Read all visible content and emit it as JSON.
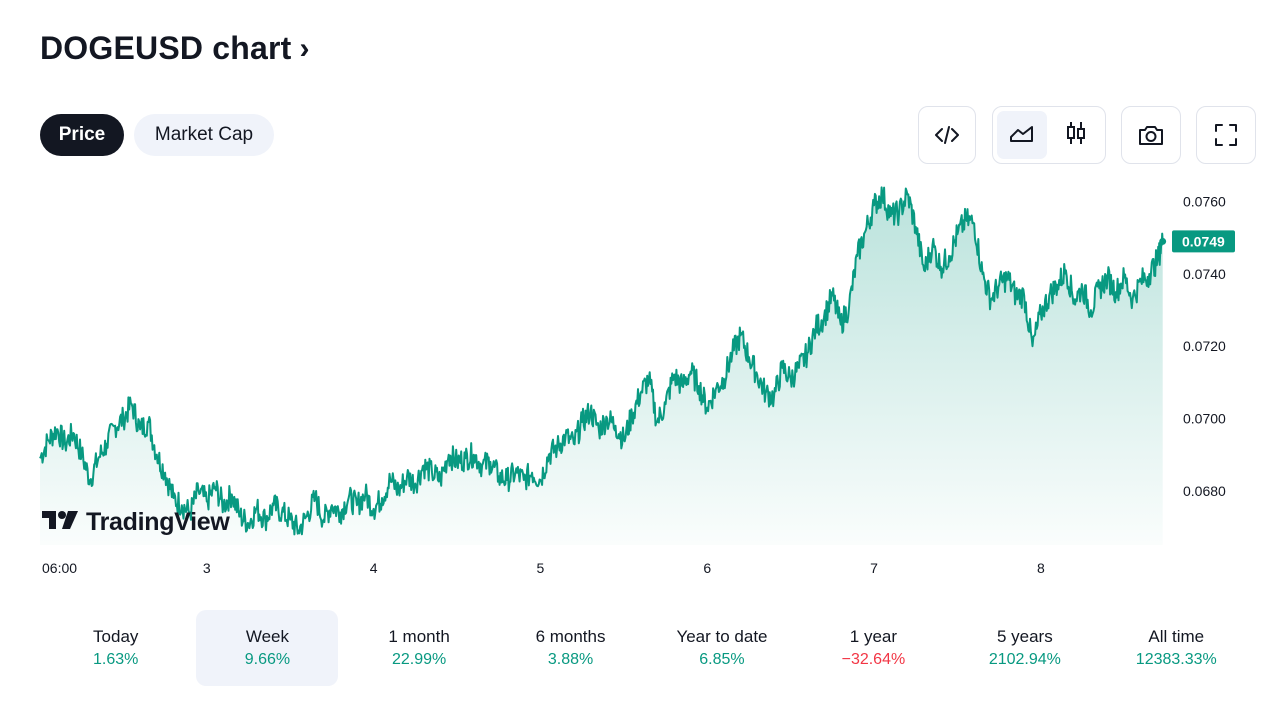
{
  "header": {
    "title": "DOGEUSD chart",
    "chevron": "›"
  },
  "tabs": [
    {
      "label": "Price",
      "active": true
    },
    {
      "label": "Market Cap",
      "active": false
    }
  ],
  "toolbar": {
    "embed_icon": "code-icon",
    "area_icon": "area-chart-icon",
    "candles_icon": "candlestick-icon",
    "snapshot_icon": "camera-icon",
    "fullscreen_icon": "fullscreen-icon"
  },
  "watermark": "TradingView",
  "colors": {
    "line": "#089981",
    "positive": "#089981",
    "negative": "#f23645",
    "dark": "#131722",
    "selected_bg": "#f0f3fa"
  },
  "chart_data": {
    "type": "area",
    "symbol": "DOGEUSD",
    "last_price": "0.0749",
    "y_ticks": [
      "0.0760",
      "0.0740",
      "0.0720",
      "0.0700",
      "0.0680"
    ],
    "y_tick_values": [
      0.076,
      0.074,
      0.072,
      0.07,
      0.068
    ],
    "x_ticks": [
      "06:00",
      "3",
      "4",
      "5",
      "6",
      "7",
      "8"
    ],
    "ylim": [
      0.0665,
      0.0766
    ],
    "x_day_range": [
      1.75,
      8.5
    ],
    "x_tick_days": [
      1.75,
      2.75,
      3.75,
      4.75,
      5.75,
      6.75,
      7.75
    ],
    "series": [
      {
        "values": [
          [
            1.75,
            0.0689
          ],
          [
            1.8,
            0.0694
          ],
          [
            1.85,
            0.0697
          ],
          [
            1.9,
            0.0693
          ],
          [
            1.95,
            0.0696
          ],
          [
            2.0,
            0.069
          ],
          [
            2.05,
            0.0683
          ],
          [
            2.1,
            0.0689
          ],
          [
            2.15,
            0.0693
          ],
          [
            2.2,
            0.0698
          ],
          [
            2.25,
            0.07
          ],
          [
            2.3,
            0.0704
          ],
          [
            2.35,
            0.0697
          ],
          [
            2.4,
            0.0699
          ],
          [
            2.45,
            0.069
          ],
          [
            2.5,
            0.0685
          ],
          [
            2.55,
            0.0678
          ],
          [
            2.6,
            0.0676
          ],
          [
            2.65,
            0.0674
          ],
          [
            2.7,
            0.068
          ],
          [
            2.75,
            0.0677
          ],
          [
            2.8,
            0.0681
          ],
          [
            2.85,
            0.0676
          ],
          [
            2.9,
            0.0679
          ],
          [
            2.95,
            0.0673
          ],
          [
            3.0,
            0.0671
          ],
          [
            3.05,
            0.0675
          ],
          [
            3.1,
            0.0672
          ],
          [
            3.15,
            0.0676
          ],
          [
            3.2,
            0.0674
          ],
          [
            3.25,
            0.0672
          ],
          [
            3.3,
            0.0669
          ],
          [
            3.35,
            0.0673
          ],
          [
            3.4,
            0.0678
          ],
          [
            3.45,
            0.0672
          ],
          [
            3.5,
            0.0676
          ],
          [
            3.55,
            0.0674
          ],
          [
            3.6,
            0.0678
          ],
          [
            3.65,
            0.0676
          ],
          [
            3.7,
            0.0679
          ],
          [
            3.75,
            0.0675
          ],
          [
            3.8,
            0.0678
          ],
          [
            3.85,
            0.0683
          ],
          [
            3.9,
            0.068
          ],
          [
            3.95,
            0.0684
          ],
          [
            4.0,
            0.0682
          ],
          [
            4.05,
            0.0687
          ],
          [
            4.1,
            0.0685
          ],
          [
            4.15,
            0.0683
          ],
          [
            4.2,
            0.069
          ],
          [
            4.25,
            0.0688
          ],
          [
            4.3,
            0.0689
          ],
          [
            4.35,
            0.069
          ],
          [
            4.4,
            0.0687
          ],
          [
            4.45,
            0.0688
          ],
          [
            4.5,
            0.0684
          ],
          [
            4.55,
            0.0683
          ],
          [
            4.6,
            0.0685
          ],
          [
            4.65,
            0.0683
          ],
          [
            4.7,
            0.0685
          ],
          [
            4.75,
            0.0683
          ],
          [
            4.8,
            0.069
          ],
          [
            4.85,
            0.0692
          ],
          [
            4.9,
            0.0695
          ],
          [
            4.95,
            0.0693
          ],
          [
            5.0,
            0.0699
          ],
          [
            5.05,
            0.0702
          ],
          [
            5.1,
            0.0697
          ],
          [
            5.15,
            0.07
          ],
          [
            5.2,
            0.0698
          ],
          [
            5.25,
            0.0694
          ],
          [
            5.3,
            0.0701
          ],
          [
            5.35,
            0.0707
          ],
          [
            5.4,
            0.0711
          ],
          [
            5.45,
            0.0699
          ],
          [
            5.5,
            0.0704
          ],
          [
            5.55,
            0.0712
          ],
          [
            5.6,
            0.0709
          ],
          [
            5.65,
            0.0713
          ],
          [
            5.7,
            0.0709
          ],
          [
            5.75,
            0.0703
          ],
          [
            5.8,
            0.0708
          ],
          [
            5.85,
            0.0711
          ],
          [
            5.9,
            0.0718
          ],
          [
            5.95,
            0.0723
          ],
          [
            6.0,
            0.0717
          ],
          [
            6.05,
            0.0712
          ],
          [
            6.1,
            0.0707
          ],
          [
            6.15,
            0.0706
          ],
          [
            6.2,
            0.0714
          ],
          [
            6.25,
            0.0711
          ],
          [
            6.3,
            0.0714
          ],
          [
            6.35,
            0.0718
          ],
          [
            6.4,
            0.0725
          ],
          [
            6.45,
            0.0728
          ],
          [
            6.5,
            0.0734
          ],
          [
            6.55,
            0.0726
          ],
          [
            6.6,
            0.0731
          ],
          [
            6.65,
            0.0745
          ],
          [
            6.7,
            0.0752
          ],
          [
            6.75,
            0.0759
          ],
          [
            6.8,
            0.0762
          ],
          [
            6.85,
            0.0756
          ],
          [
            6.9,
            0.0757
          ],
          [
            6.95,
            0.0762
          ],
          [
            7.0,
            0.0753
          ],
          [
            7.05,
            0.0741
          ],
          [
            7.1,
            0.0748
          ],
          [
            7.15,
            0.0742
          ],
          [
            7.2,
            0.0745
          ],
          [
            7.25,
            0.0751
          ],
          [
            7.3,
            0.0755
          ],
          [
            7.35,
            0.0754
          ],
          [
            7.4,
            0.074
          ],
          [
            7.45,
            0.0733
          ],
          [
            7.5,
            0.0737
          ],
          [
            7.55,
            0.0739
          ],
          [
            7.6,
            0.0734
          ],
          [
            7.65,
            0.0734
          ],
          [
            7.7,
            0.072
          ],
          [
            7.75,
            0.0729
          ],
          [
            7.8,
            0.0734
          ],
          [
            7.85,
            0.0737
          ],
          [
            7.9,
            0.0741
          ],
          [
            7.95,
            0.0733
          ],
          [
            8.0,
            0.0736
          ],
          [
            8.05,
            0.073
          ],
          [
            8.1,
            0.0736
          ],
          [
            8.15,
            0.0739
          ],
          [
            8.2,
            0.0735
          ],
          [
            8.25,
            0.0739
          ],
          [
            8.3,
            0.0733
          ],
          [
            8.35,
            0.0738
          ],
          [
            8.4,
            0.074
          ],
          [
            8.45,
            0.0744
          ],
          [
            8.48,
            0.0749
          ]
        ]
      }
    ]
  },
  "periods": [
    {
      "label": "Today",
      "value": "1.63%",
      "positive": true,
      "active": false
    },
    {
      "label": "Week",
      "value": "9.66%",
      "positive": true,
      "active": true
    },
    {
      "label": "1 month",
      "value": "22.99%",
      "positive": true,
      "active": false
    },
    {
      "label": "6 months",
      "value": "3.88%",
      "positive": true,
      "active": false
    },
    {
      "label": "Year to date",
      "value": "6.85%",
      "positive": true,
      "active": false
    },
    {
      "label": "1 year",
      "value": "−32.64%",
      "positive": false,
      "active": false
    },
    {
      "label": "5 years",
      "value": "2102.94%",
      "positive": true,
      "active": false
    },
    {
      "label": "All time",
      "value": "12383.33%",
      "positive": true,
      "active": false
    }
  ]
}
